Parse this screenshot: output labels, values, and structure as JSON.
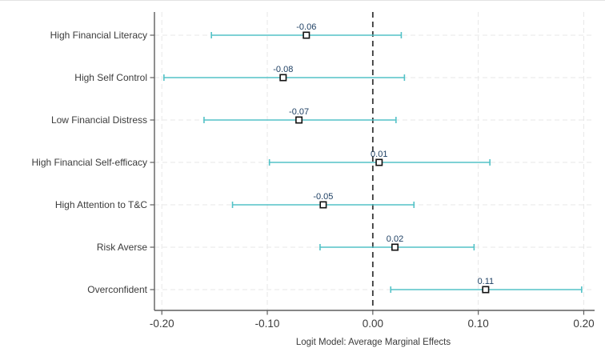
{
  "chart_data": {
    "type": "scatter",
    "subtype": "coefficient-forest-plot",
    "title": "",
    "xlabel": "Logit Model: Average Marginal Effects",
    "ylabel": "",
    "xlim": [
      -0.207,
      0.208
    ],
    "xticks": [
      -0.2,
      -0.1,
      0.0,
      0.1,
      0.2
    ],
    "xtick_labels": [
      "-0.20",
      "-0.10",
      "0.00",
      "0.10",
      "0.20"
    ],
    "zero_line_at": 0,
    "grid": "dashed-both-axes",
    "legend": "none",
    "categories": [
      "High Financial Literacy",
      "High Self Control",
      "Low Financial Distress",
      "High Financial Self-efficacy",
      "High Attention to T&C",
      "Risk Averse",
      "Overconfident"
    ],
    "series": [
      {
        "name": "Average Marginal Effect (95% CI)",
        "points": [
          {
            "label": "-0.06",
            "estimate": -0.063,
            "ci_low": -0.153,
            "ci_high": 0.027
          },
          {
            "label": "-0.08",
            "estimate": -0.085,
            "ci_low": -0.198,
            "ci_high": 0.03
          },
          {
            "label": "-0.07",
            "estimate": -0.07,
            "ci_low": -0.16,
            "ci_high": 0.022
          },
          {
            "label": "0.01",
            "estimate": 0.006,
            "ci_low": -0.098,
            "ci_high": 0.111
          },
          {
            "label": "-0.05",
            "estimate": -0.047,
            "ci_low": -0.133,
            "ci_high": 0.039
          },
          {
            "label": "0.02",
            "estimate": 0.021,
            "ci_low": -0.05,
            "ci_high": 0.096
          },
          {
            "label": "0.11",
            "estimate": 0.107,
            "ci_low": 0.017,
            "ci_high": 0.198
          }
        ]
      }
    ],
    "colors": {
      "ci_line": "#53c2c7",
      "marker_fill": "#ffffff",
      "marker_border": "#111111",
      "value_label": "#1d3f63",
      "axis": "#5f5f5f",
      "text": "#3b3b3b",
      "grid": "#e7e7e7",
      "zero_line": "#383838",
      "background": "#ffffff"
    }
  }
}
